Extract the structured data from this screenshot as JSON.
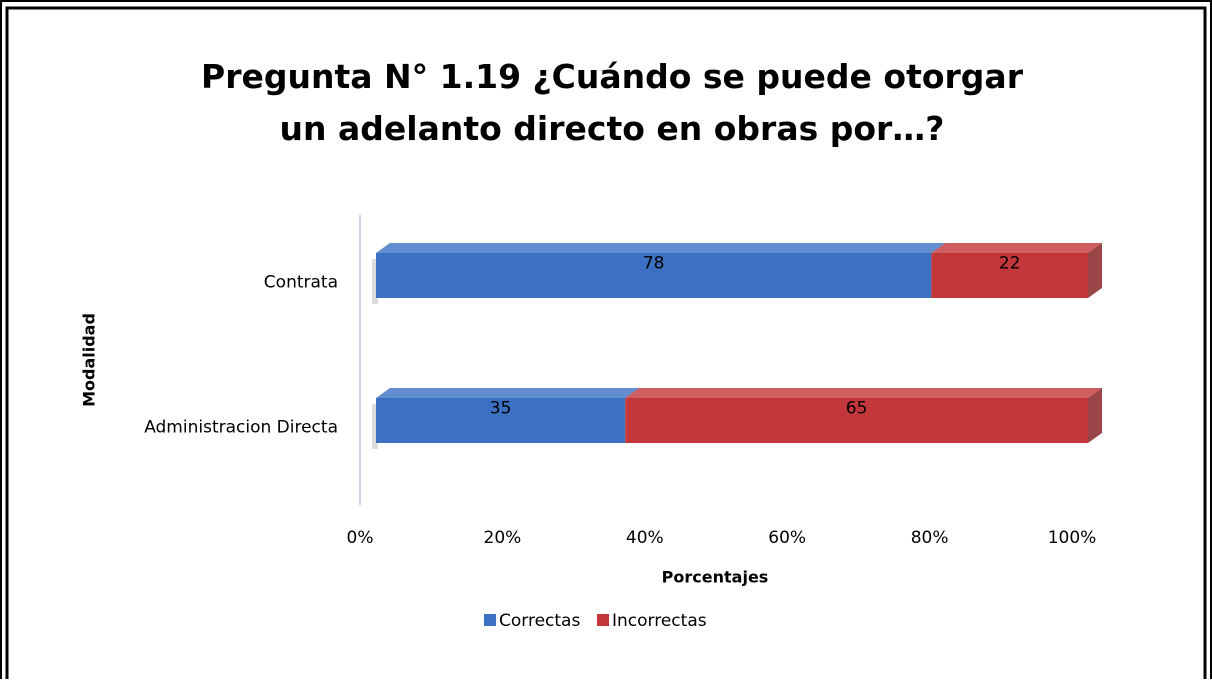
{
  "chart_data": {
    "type": "stacked-barh",
    "title": "Pregunta N° 1.19 ¿Cuándo se puede otorgar un adelanto directo en obras por…?",
    "xlabel": "Porcentajes",
    "ylabel": "Modalidad",
    "categories": [
      "Contrata",
      "Administracion Directa"
    ],
    "series": [
      {
        "name": "Correctas",
        "color": "#3b70c2",
        "values": [
          78,
          35
        ]
      },
      {
        "name": "Incorrectas",
        "color": "#c3363a",
        "values": [
          22,
          65
        ]
      }
    ],
    "xlim": [
      0,
      100
    ],
    "xticks": [
      {
        "value": 0,
        "label": "0%"
      },
      {
        "value": 20,
        "label": "20%"
      },
      {
        "value": 40,
        "label": "40%"
      },
      {
        "value": 60,
        "label": "60%"
      },
      {
        "value": 80,
        "label": "80%"
      },
      {
        "value": 100,
        "label": "100%"
      }
    ],
    "legend": "bottom"
  }
}
